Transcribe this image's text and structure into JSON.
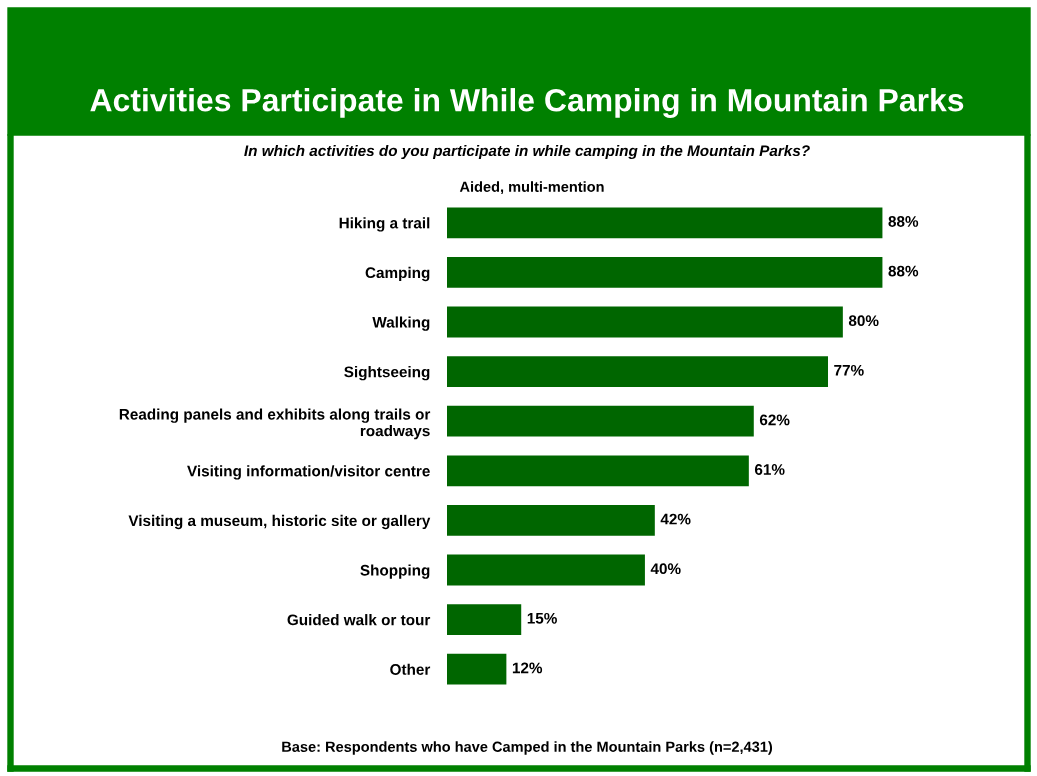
{
  "chart_data": {
    "type": "bar",
    "orientation": "horizontal",
    "title": "Activities Participate in While Camping in Mountain Parks",
    "subtitle": "In which activities do you participate in while camping in the Mountain Parks?",
    "annotations": [
      "Aided, multi-mention",
      "Base: Respondents who have Camped in the Mountain Parks (n=2,431)"
    ],
    "categories": [
      "Hiking a trail",
      "Camping",
      "Walking",
      "Sightseeing",
      "Reading panels and exhibits along trails or\nroadways",
      "Visiting information/visitor centre",
      "Visiting a museum, historic site or gallery",
      "Shopping",
      "Guided walk or tour",
      "Other"
    ],
    "values": [
      88,
      88,
      80,
      77,
      62,
      61,
      42,
      40,
      15,
      12
    ],
    "value_labels": [
      "88%",
      "88%",
      "80%",
      "77%",
      "62%",
      "61%",
      "42%",
      "40%",
      "15%",
      "12%"
    ],
    "color": "#006600",
    "grid": false,
    "legend": false
  }
}
